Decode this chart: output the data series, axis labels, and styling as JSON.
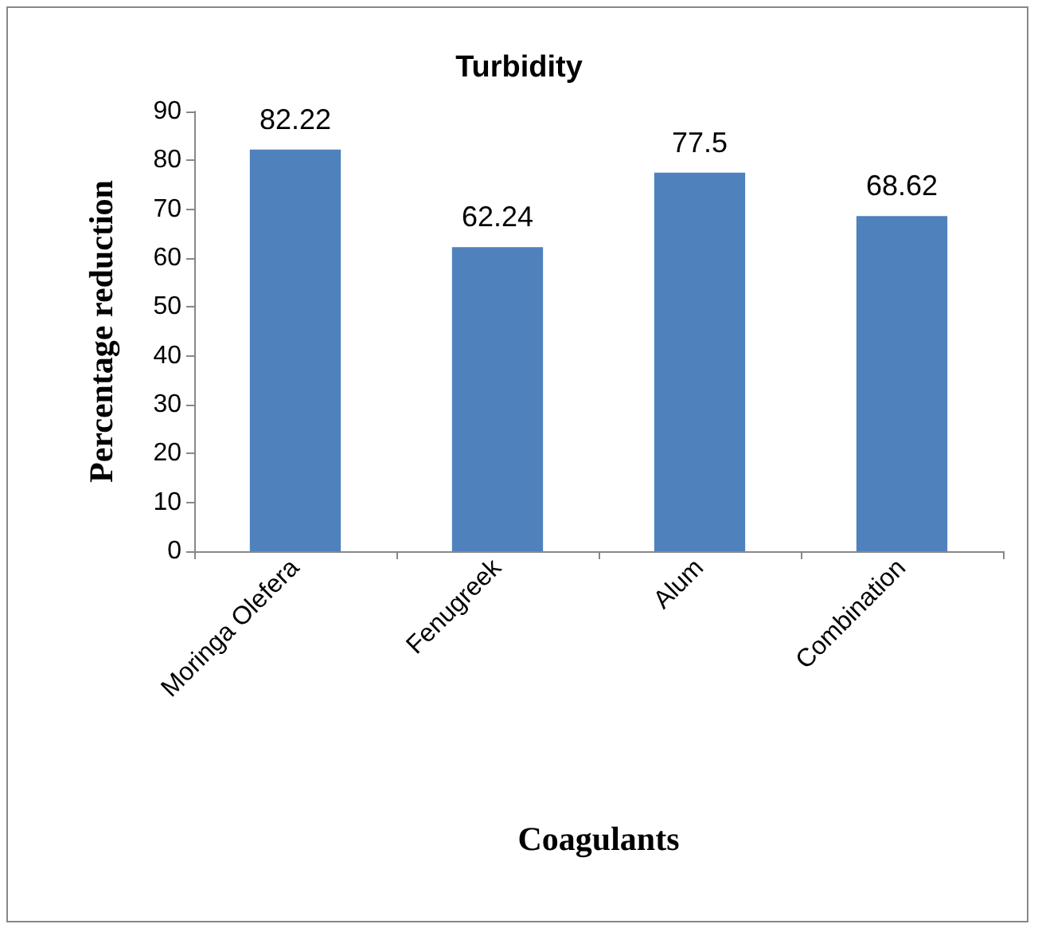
{
  "chart_data": {
    "type": "bar",
    "title": "Turbidity",
    "xlabel": "Coagulants",
    "ylabel": "Percentage reduction",
    "categories": [
      "Moringa Olefera",
      "Fenugreek",
      "Alum",
      "Combination"
    ],
    "values": [
      82.22,
      62.24,
      77.5,
      68.62
    ],
    "color": "#4f81bd",
    "ylim": [
      0,
      90
    ],
    "yticks": [
      0,
      10,
      20,
      30,
      40,
      50,
      60,
      70,
      80,
      90
    ],
    "grid": false,
    "data_labels": true
  }
}
